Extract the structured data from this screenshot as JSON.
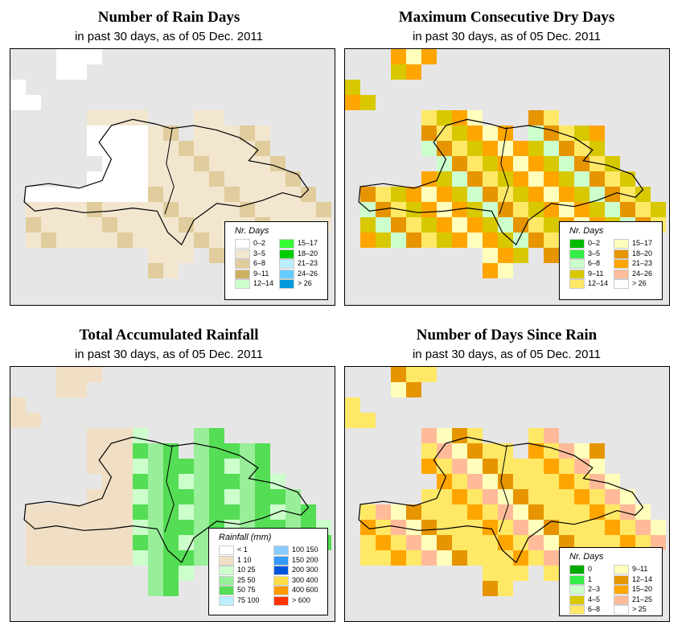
{
  "figure": {
    "panels": [
      {
        "id": "rain-days",
        "title": "Number of Rain Days",
        "subtitle": "in past 30 days, as of  05 Dec. 2011",
        "legend_title": "Nr. Days",
        "legend": [
          {
            "label": "0–2",
            "color": "#ffffff"
          },
          {
            "label": "3–5",
            "color": "#f2e6cf"
          },
          {
            "label": "6–8",
            "color": "#e0cc9c"
          },
          {
            "label": "9–11",
            "color": "#ccb060"
          },
          {
            "label": "12–14",
            "color": "#ccffcc"
          },
          {
            "label": "15–17",
            "color": "#33ff33"
          },
          {
            "label": "18–20",
            "color": "#00cc00"
          },
          {
            "label": "21–23",
            "color": "#bbeeff"
          },
          {
            "label": "24–26",
            "color": "#66ccff"
          },
          {
            "label": "> 26",
            "color": "#0099dd"
          }
        ]
      },
      {
        "id": "max-dry-days",
        "title": "Maximum Consecutive Dry Days",
        "subtitle": "in past 30 days, as of  05 Dec. 2011",
        "legend_title": "Nr. Days",
        "legend": [
          {
            "label": "0–2",
            "color": "#00bb00"
          },
          {
            "label": "3–5",
            "color": "#33ee44"
          },
          {
            "label": "6–8",
            "color": "#ccffcc"
          },
          {
            "label": "9–11",
            "color": "#d8c800"
          },
          {
            "label": "12–14",
            "color": "#ffe866"
          },
          {
            "label": "15–17",
            "color": "#ffffbb"
          },
          {
            "label": "18–20",
            "color": "#e69500"
          },
          {
            "label": "21–23",
            "color": "#ffa500"
          },
          {
            "label": "24–26",
            "color": "#ffbb99"
          },
          {
            "label": "> 26",
            "color": "#ffffff"
          }
        ]
      },
      {
        "id": "total-rainfall",
        "title": "Total Accumulated Rainfall",
        "subtitle": "in past 30 days, as of  05 Dec. 2011",
        "legend_title": "Rainfall (mm)",
        "legend": [
          {
            "label": "< 1",
            "color": "#ffffff"
          },
          {
            "label": "1   10",
            "color": "#f0dfc4"
          },
          {
            "label": "10   25",
            "color": "#ccffcc"
          },
          {
            "label": "25   50",
            "color": "#99ee99"
          },
          {
            "label": "50   75",
            "color": "#55dd55"
          },
          {
            "label": "75   100",
            "color": "#bbeeff"
          },
          {
            "label": "100   150",
            "color": "#88ccff"
          },
          {
            "label": "150   200",
            "color": "#3399ff"
          },
          {
            "label": "200   300",
            "color": "#0055dd"
          },
          {
            "label": "300   400",
            "color": "#ffdd44"
          },
          {
            "label": "400   600",
            "color": "#ff9900"
          },
          {
            "label": "> 600",
            "color": "#ff3300"
          }
        ]
      },
      {
        "id": "days-since-rain",
        "title": "Number of Days Since Rain",
        "subtitle": "in past 30 days, as of  05 Dec. 2011",
        "legend_title": "Nr. Days",
        "legend": [
          {
            "label": "0",
            "color": "#00aa00"
          },
          {
            "label": "1",
            "color": "#33ee44"
          },
          {
            "label": "2–3",
            "color": "#ccffcc"
          },
          {
            "label": "4–5",
            "color": "#d8c800"
          },
          {
            "label": "6–8",
            "color": "#ffe866"
          },
          {
            "label": "9–11",
            "color": "#ffffbb"
          },
          {
            "label": "12–14",
            "color": "#e69500"
          },
          {
            "label": "15–20",
            "color": "#ffa500"
          },
          {
            "label": "21–25",
            "color": "#ffbb99"
          },
          {
            "label": "> 25",
            "color": "#ffffff"
          }
        ]
      }
    ],
    "map_background_color": "#e6e6e6"
  }
}
